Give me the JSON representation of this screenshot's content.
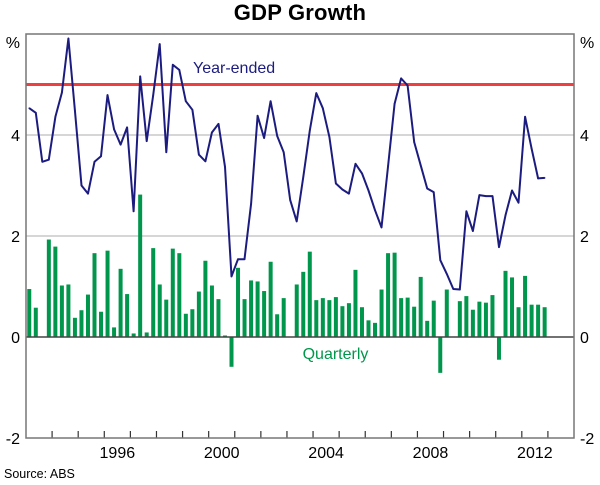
{
  "chart_data": {
    "type": "bar+line",
    "title": "GDP Growth",
    "ylabel_left": "%",
    "ylabel_right": "%",
    "ylim": [
      -2,
      6
    ],
    "yticks": [
      -2,
      0,
      2,
      4
    ],
    "xlim": [
      "1993",
      "2014"
    ],
    "xtick_labels": [
      "1996",
      "2000",
      "2004",
      "2008",
      "2012"
    ],
    "grid": true,
    "source": "Source: ABS",
    "reference_line": {
      "value": 5,
      "color": "#ee4040"
    },
    "x": [
      "1993Q1",
      "1993Q2",
      "1993Q3",
      "1993Q4",
      "1994Q1",
      "1994Q2",
      "1994Q3",
      "1994Q4",
      "1995Q1",
      "1995Q2",
      "1995Q3",
      "1995Q4",
      "1996Q1",
      "1996Q2",
      "1996Q3",
      "1996Q4",
      "1997Q1",
      "1997Q2",
      "1997Q3",
      "1997Q4",
      "1998Q1",
      "1998Q2",
      "1998Q3",
      "1998Q4",
      "1999Q1",
      "1999Q2",
      "1999Q3",
      "1999Q4",
      "2000Q1",
      "2000Q2",
      "2000Q3",
      "2000Q4",
      "2001Q1",
      "2001Q2",
      "2001Q3",
      "2001Q4",
      "2002Q1",
      "2002Q2",
      "2002Q3",
      "2002Q4",
      "2003Q1",
      "2003Q2",
      "2003Q3",
      "2003Q4",
      "2004Q1",
      "2004Q2",
      "2004Q3",
      "2004Q4",
      "2005Q1",
      "2005Q2",
      "2005Q3",
      "2005Q4",
      "2006Q1",
      "2006Q2",
      "2006Q3",
      "2006Q4",
      "2007Q1",
      "2007Q2",
      "2007Q3",
      "2007Q4",
      "2008Q1",
      "2008Q2",
      "2008Q3",
      "2008Q4",
      "2009Q1",
      "2009Q2",
      "2009Q3",
      "2009Q4",
      "2010Q1",
      "2010Q2",
      "2010Q3",
      "2010Q4",
      "2011Q1",
      "2011Q2",
      "2011Q3",
      "2011Q4",
      "2012Q1",
      "2012Q2",
      "2012Q3",
      "2012Q4"
    ],
    "series": [
      {
        "name": "Quarterly",
        "type": "bar",
        "color": "#00964b",
        "values": [
          0.95,
          0.58,
          0.0,
          1.93,
          1.79,
          1.02,
          1.04,
          0.38,
          0.53,
          0.84,
          1.66,
          0.5,
          1.71,
          0.19,
          1.35,
          0.85,
          0.07,
          2.82,
          0.09,
          1.76,
          1.04,
          0.74,
          1.75,
          1.66,
          0.46,
          0.55,
          0.9,
          1.51,
          1.02,
          0.75,
          0.03,
          -0.59,
          1.37,
          0.75,
          1.12,
          1.1,
          0.91,
          1.49,
          0.45,
          0.77,
          0.0,
          1.04,
          1.29,
          1.69,
          0.73,
          0.77,
          0.73,
          0.79,
          0.61,
          0.67,
          1.33,
          0.59,
          0.33,
          0.28,
          0.94,
          1.66,
          1.67,
          0.77,
          0.78,
          0.6,
          1.19,
          0.32,
          0.72,
          -0.71,
          0.94,
          0.0,
          0.71,
          0.81,
          0.54,
          0.7,
          0.68,
          0.83,
          -0.45,
          1.31,
          1.18,
          0.59,
          1.21,
          0.64,
          0.64,
          0.59
        ]
      },
      {
        "name": "Year-ended",
        "type": "line",
        "color": "#1c1c80",
        "values": [
          4.53,
          4.44,
          3.47,
          3.51,
          4.36,
          4.84,
          5.91,
          4.49,
          3.0,
          2.84,
          3.47,
          3.58,
          4.79,
          4.11,
          3.81,
          4.15,
          2.49,
          5.16,
          3.88,
          4.79,
          5.8,
          3.66,
          5.39,
          5.29,
          4.67,
          4.5,
          3.61,
          3.48,
          4.05,
          4.22,
          3.37,
          1.2,
          1.54,
          1.54,
          2.64,
          4.38,
          3.94,
          4.67,
          3.98,
          3.66,
          2.71,
          2.29,
          3.17,
          4.09,
          4.83,
          4.53,
          3.96,
          3.04,
          2.92,
          2.84,
          3.43,
          3.24,
          2.9,
          2.51,
          2.17,
          3.39,
          4.62,
          5.12,
          4.98,
          3.86,
          3.4,
          2.94,
          2.87,
          1.52,
          1.25,
          0.95,
          0.94,
          2.49,
          2.1,
          2.81,
          2.79,
          2.79,
          1.78,
          2.41,
          2.9,
          2.66,
          4.36,
          3.73,
          3.14,
          3.15
        ]
      }
    ]
  }
}
